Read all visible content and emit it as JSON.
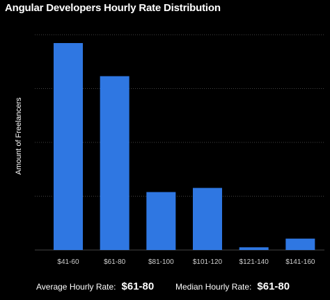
{
  "chart_data": {
    "type": "bar",
    "title": "Angular Developers Hourly Rate Distribution",
    "xlabel": "",
    "ylabel": "Amount of Freelancers",
    "categories": [
      "$41-60",
      "$61-80",
      "$81-100",
      "$101-120",
      "$121-140",
      "$141-160"
    ],
    "values": [
      100,
      84,
      28,
      30,
      1.3,
      5.5
    ],
    "ylim": [
      0,
      100
    ],
    "grid": true,
    "bar_color": "#2f77e2",
    "grid_color": "#444444"
  },
  "footer": {
    "average_label": "Average Hourly Rate:",
    "average_value": "$61-80",
    "median_label": "Median Hourly Rate:",
    "median_value": "$61-80"
  }
}
